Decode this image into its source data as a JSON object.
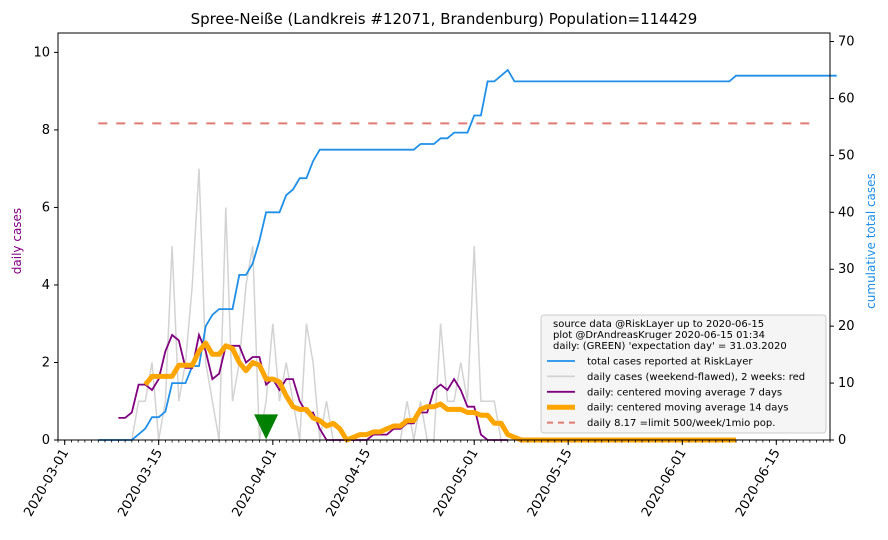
{
  "chart_data": {
    "type": "line",
    "title": "Spree-Neiße (Landkreis #12071, Brandenburg) Population=114429",
    "ylabel_left": "daily cases",
    "ylabel_right": "cumulative total cases",
    "x_range": [
      "2020-02-29",
      "2020-06-23"
    ],
    "y_left_range": [
      0,
      10.5
    ],
    "y_right_range": [
      0,
      71.5
    ],
    "x_ticks": [
      "2020-03-01",
      "2020-03-15",
      "2020-04-01",
      "2020-04-15",
      "2020-05-01",
      "2020-05-15",
      "2020-06-01",
      "2020-06-15"
    ],
    "y_left_ticks": [
      0,
      2,
      4,
      6,
      8,
      10
    ],
    "y_right_ticks": [
      0,
      10,
      20,
      30,
      40,
      50,
      60,
      70
    ],
    "colors": {
      "total": "#1f8fe8",
      "daily": "#d3d3d3",
      "ma7": "#800080",
      "ma14": "#ffa500",
      "limit": "#e07b73",
      "marker": "#008000",
      "left_label": "#800080",
      "right_label": "#1f8fe8"
    },
    "daily_cases": {
      "name": "daily cases (weekend-flawed), 2 weeks: red",
      "x_start": "2020-03-06",
      "values": [
        0,
        0,
        0,
        0,
        0,
        0,
        1,
        1,
        2,
        0,
        1,
        5,
        1,
        2,
        4,
        7,
        2,
        1,
        0,
        6,
        1,
        2,
        4,
        5,
        0,
        1,
        3,
        1,
        2,
        1,
        0,
        3,
        2,
        0,
        1,
        0,
        0,
        0,
        0,
        0,
        0,
        0,
        0,
        0,
        0,
        0,
        1,
        0,
        1,
        0,
        0,
        3,
        1,
        1,
        2,
        1,
        5,
        1,
        1,
        1,
        0,
        0,
        0,
        0,
        0,
        0,
        0,
        0,
        0,
        0,
        0,
        0,
        0,
        0,
        0,
        0,
        0,
        0,
        0,
        0,
        0,
        0,
        0,
        0,
        0,
        0,
        0,
        0,
        0,
        0,
        0,
        0,
        0,
        0,
        0,
        0,
        0,
        0,
        0,
        0,
        0,
        0,
        0,
        0
      ]
    },
    "total_cases": {
      "name": "total cases reported at RiskLayer",
      "x_start": "2020-03-06",
      "values": [
        0,
        0,
        0,
        0,
        0,
        0,
        1,
        2,
        4,
        4,
        5,
        10,
        10,
        10,
        13,
        13,
        20,
        22,
        23,
        23,
        23,
        29,
        29,
        31,
        35,
        40,
        40,
        40,
        43,
        44,
        46,
        46,
        49,
        51,
        51,
        51,
        51,
        51,
        51,
        51,
        51,
        51,
        51,
        51,
        51,
        51,
        51,
        51,
        52,
        52,
        52,
        53,
        53,
        54,
        54,
        54,
        57,
        57,
        63,
        63,
        64,
        65,
        63,
        63,
        63,
        63,
        63,
        63,
        63,
        63,
        63,
        63,
        63,
        63,
        63,
        63,
        63,
        63,
        63,
        63,
        63,
        63,
        63,
        63,
        63,
        63,
        63,
        63,
        63,
        63,
        63,
        63,
        63,
        63,
        63,
        64,
        64,
        64,
        64,
        64,
        64,
        64,
        64,
        64,
        64,
        64,
        64,
        64,
        64,
        64,
        64
      ]
    },
    "ma7": {
      "name": "daily: centered moving average 7 days",
      "x_start": "2020-03-09",
      "values": [
        0.57,
        0.57,
        0.71,
        1.43,
        1.43,
        1.29,
        1.57,
        2.29,
        2.71,
        2.57,
        1.86,
        1.86,
        2.71,
        2.29,
        1.57,
        1.71,
        2.43,
        2.43,
        2.43,
        2.0,
        2.14,
        2.14,
        1.43,
        1.57,
        1.29,
        1.57,
        1.57,
        1.0,
        0.71,
        0.71,
        0.29,
        0.0,
        0.0,
        0.0,
        0.0,
        0.0,
        0.0,
        0.0,
        0.14,
        0.14,
        0.14,
        0.29,
        0.29,
        0.43,
        0.43,
        0.71,
        0.71,
        1.29,
        1.43,
        1.29,
        1.57,
        1.29,
        0.86,
        0.86,
        0.14,
        0.0,
        0.0,
        0.0,
        0.0
      ]
    },
    "ma14": {
      "name": "daily: centered moving average 14 days",
      "x_start": "2020-03-13",
      "values": [
        1.43,
        1.64,
        1.64,
        1.64,
        1.64,
        1.93,
        1.93,
        1.93,
        2.29,
        2.5,
        2.21,
        2.21,
        2.43,
        2.36,
        2.0,
        1.79,
        2.0,
        1.93,
        1.57,
        1.57,
        1.5,
        1.14,
        0.86,
        0.79,
        0.79,
        0.57,
        0.5,
        0.36,
        0.43,
        0.29,
        0.0,
        0.07,
        0.14,
        0.14,
        0.21,
        0.21,
        0.29,
        0.36,
        0.36,
        0.5,
        0.5,
        0.79,
        0.86,
        0.86,
        0.93,
        0.79,
        0.79,
        0.79,
        0.71,
        0.71,
        0.64,
        0.64,
        0.43,
        0.43,
        0.14,
        0.07,
        0.0,
        0.0,
        0.0,
        0.0,
        0.0,
        0.0,
        0.0,
        0.0,
        0.0,
        0.0,
        0.0,
        0.0,
        0.0,
        0.0,
        0.0,
        0.0,
        0.0,
        0.0,
        0.0,
        0.0,
        0.0,
        0.0,
        0.0,
        0.0,
        0.0,
        0.0,
        0.0,
        0.0,
        0.0,
        0.0,
        0.0,
        0.0,
        0.0
      ]
    },
    "limit": {
      "name": "daily 8.17 =limit 500/week/1mio pop.",
      "value": 8.17,
      "x_range": [
        "2020-03-06",
        "2020-06-20"
      ]
    },
    "expectation_marker": {
      "x": "2020-03-31",
      "y": 0.35
    },
    "legend": {
      "placement": "lower-right",
      "header_lines": [
        "source data @RiskLayer up to 2020-06-15",
        "plot @DrAndreasKruger 2020-06-15 01:34",
        "daily: (GREEN) 'expectation day' = 31.03.2020"
      ]
    }
  }
}
